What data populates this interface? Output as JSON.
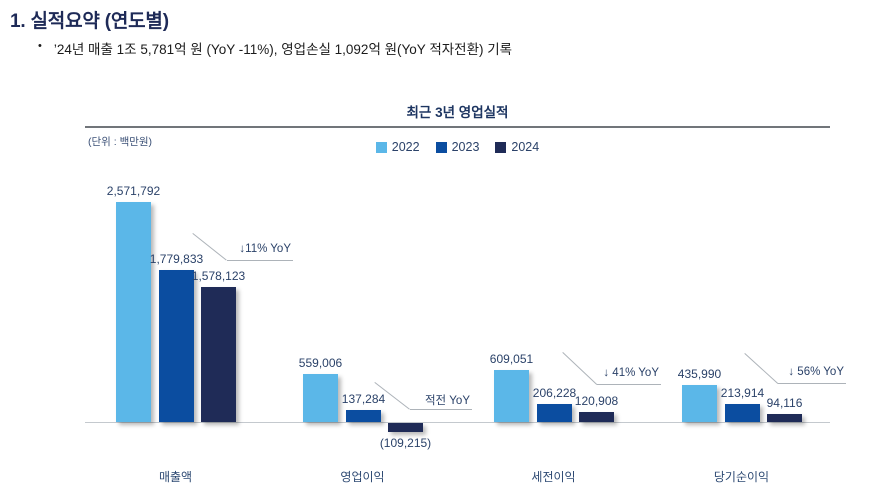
{
  "page": {
    "title": "1. 실적요약 (연도별)",
    "bullet_marker": "•",
    "bullet_text": "’24년 매출 1조 5,781억 원 (YoY -11%), 영업손실 1,092억 원(YoY 적자전환) 기록"
  },
  "chart": {
    "title": "최근 3년 영업실적",
    "unit_label": "(단위 : 백만원)"
  },
  "chart_data": {
    "type": "bar",
    "title": "최근 3년 영업실적",
    "unit": "백만원",
    "categories": [
      "매출액",
      "영업이익",
      "세전이익",
      "당기순이익"
    ],
    "series": [
      {
        "name": "2022",
        "color": "#5BB7E8",
        "values": [
          2571792,
          559006,
          609051,
          435990
        ],
        "value_labels": [
          "2,571,792",
          "559,006",
          "609,051",
          "435,990"
        ]
      },
      {
        "name": "2023",
        "color": "#0B4DA0",
        "values": [
          1779833,
          137284,
          206228,
          213914
        ],
        "value_labels": [
          "1,779,833",
          "137,284",
          "206,228",
          "213,914"
        ]
      },
      {
        "name": "2024",
        "color": "#1F2B57",
        "values": [
          1578123,
          -109215,
          120908,
          94116
        ],
        "value_labels": [
          "1,578,123",
          "(109,215)",
          "120,908",
          "94,116"
        ]
      }
    ],
    "annotations": [
      {
        "category": "매출액",
        "text": "↓11% YoY"
      },
      {
        "category": "영업이익",
        "text": "적전 YoY"
      },
      {
        "category": "세전이익",
        "text": "↓ 41% YoY"
      },
      {
        "category": "당기순이익",
        "text": "↓ 56% YoY"
      }
    ],
    "baseline_value": 0,
    "ylim": [
      -150000,
      2700000
    ],
    "grid": false,
    "legend_position": "top-center",
    "colors": {
      "label_text": "#2B4269",
      "annotation_line": "#ADB3B9",
      "axis_line": "#C4C9CE"
    }
  }
}
